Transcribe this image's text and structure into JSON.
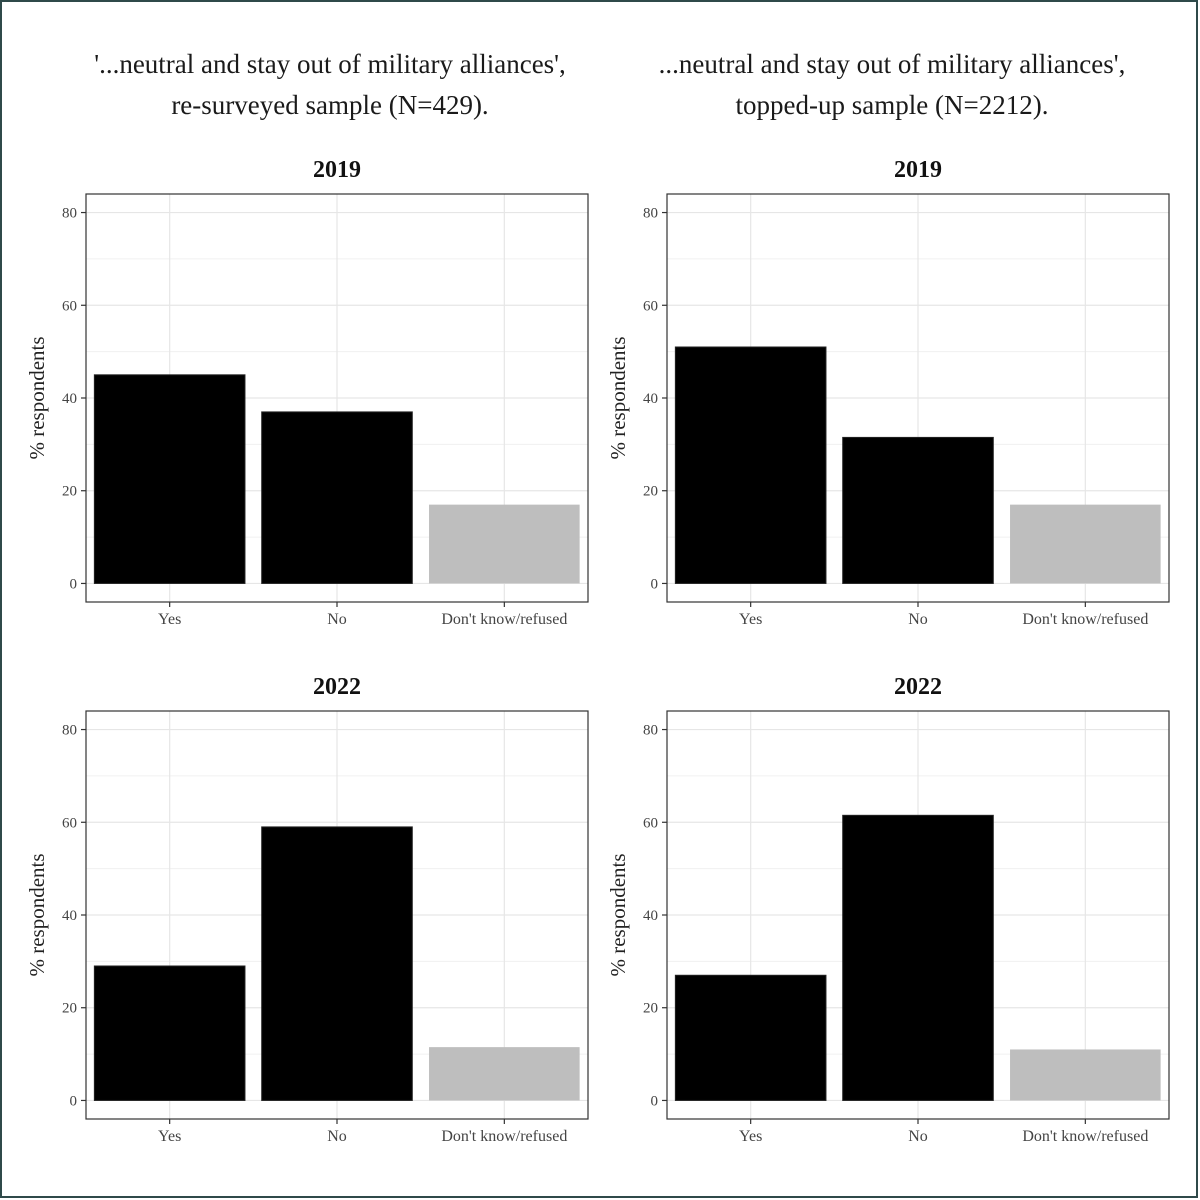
{
  "figure": {
    "columns": [
      {
        "title_line1": "'...neutral and stay out of military alliances',",
        "title_line2": "re-surveyed sample (N=429)."
      },
      {
        "title_line1": "...neutral and stay out of military alliances',",
        "title_line2": "topped-up sample (N=2212)."
      }
    ]
  },
  "colors": {
    "bar_main": "#000000",
    "bar_dk": "#bebebe",
    "grid": "#e6e6e6",
    "panel_border": "#333333"
  },
  "chart_data": [
    {
      "type": "bar",
      "title": "2019",
      "sample": "re-surveyed sample (N=429)",
      "categories": [
        "Yes",
        "No",
        "Don't know/refused"
      ],
      "values": [
        45,
        37,
        17
      ],
      "ylabel": "% respondents",
      "xlabel": "",
      "yticks": [
        "0",
        "20",
        "40",
        "60",
        "80"
      ],
      "ylim": [
        -4,
        84
      ],
      "grid": true
    },
    {
      "type": "bar",
      "title": "2019",
      "sample": "topped-up sample (N=2212)",
      "categories": [
        "Yes",
        "No",
        "Don't know/refused"
      ],
      "values": [
        51,
        31.5,
        17
      ],
      "ylabel": "% respondents",
      "xlabel": "",
      "yticks": [
        "0",
        "20",
        "40",
        "60",
        "80"
      ],
      "ylim": [
        -4,
        84
      ],
      "grid": true
    },
    {
      "type": "bar",
      "title": "2022",
      "sample": "re-surveyed sample (N=429)",
      "categories": [
        "Yes",
        "No",
        "Don't know/refused"
      ],
      "values": [
        29,
        59,
        11.5
      ],
      "ylabel": "% respondents",
      "xlabel": "",
      "yticks": [
        "0",
        "20",
        "40",
        "60",
        "80"
      ],
      "ylim": [
        -4,
        84
      ],
      "grid": true
    },
    {
      "type": "bar",
      "title": "2022",
      "sample": "topped-up sample (N=2212)",
      "categories": [
        "Yes",
        "No",
        "Don't know/refused"
      ],
      "values": [
        27,
        61.5,
        11
      ],
      "ylabel": "% respondents",
      "xlabel": "",
      "yticks": [
        "0",
        "20",
        "40",
        "60",
        "80"
      ],
      "ylim": [
        -4,
        84
      ],
      "grid": true
    }
  ]
}
